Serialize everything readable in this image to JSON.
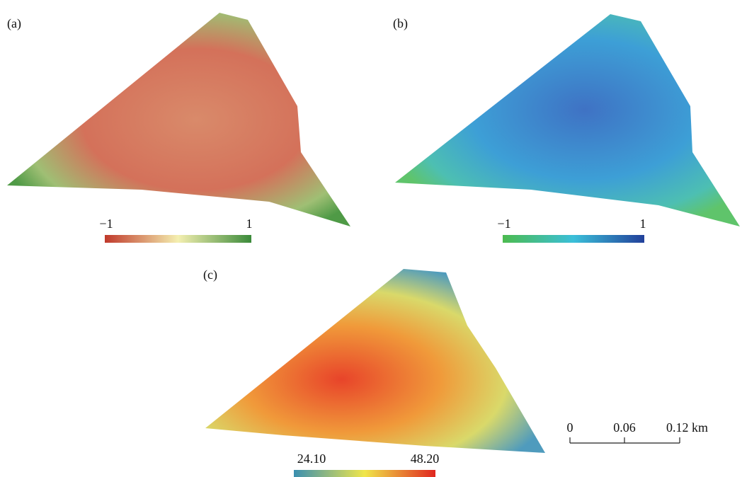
{
  "panels": [
    {
      "label": "(a)",
      "colorbar": {
        "min": "−1",
        "max": "1"
      }
    },
    {
      "label": "(b)",
      "colorbar": {
        "min": "−1",
        "max": "1"
      }
    },
    {
      "label": "(c)",
      "colorbar": {
        "min": "24.10",
        "max": "48.20"
      }
    }
  ],
  "scale_bar": {
    "ticks": [
      "0",
      "0.06",
      "0.12 km"
    ]
  }
}
